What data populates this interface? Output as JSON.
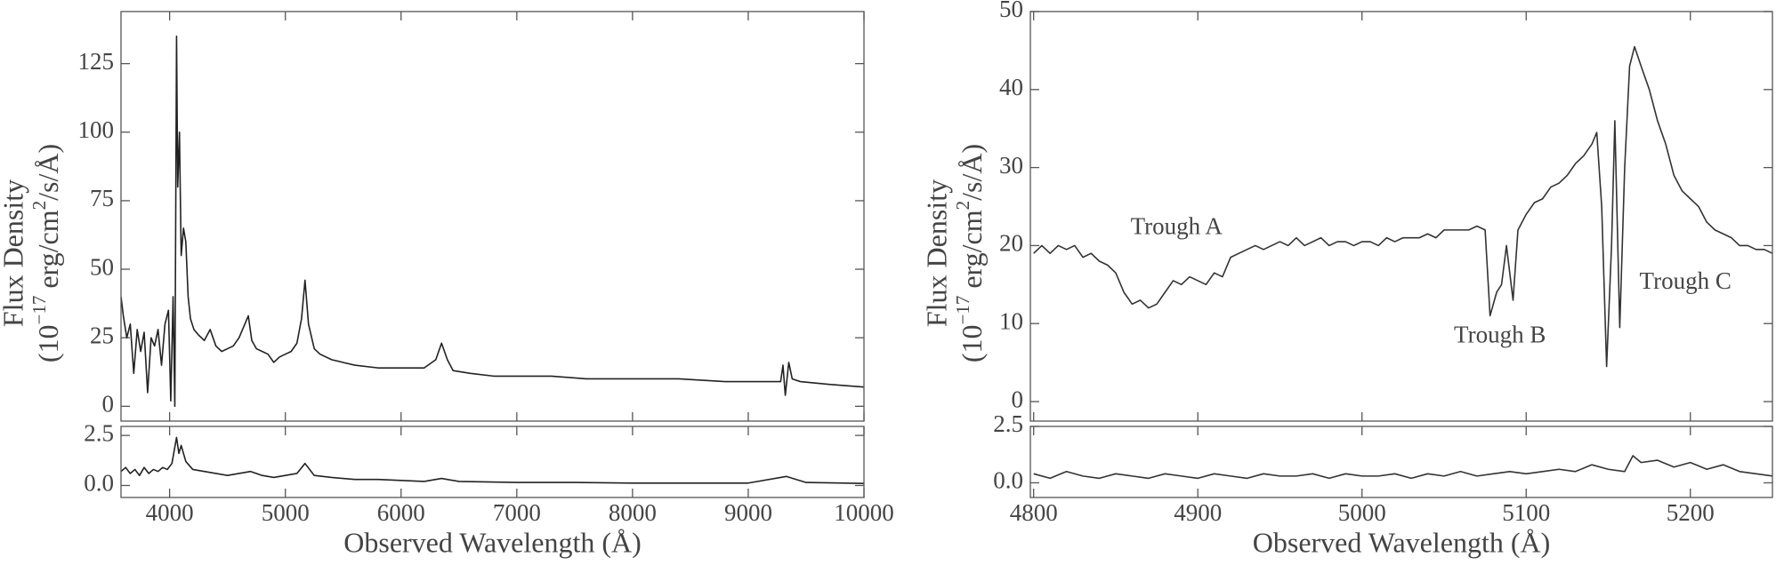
{
  "chart_data": [
    {
      "type": "line",
      "color": "#222222",
      "ylabel": [
        "Flux Density",
        [
          "(10",
          "−17",
          " erg/cm",
          "2",
          "/s/Å)"
        ]
      ],
      "xlim": [
        3580,
        10000
      ],
      "ylim": [
        -5.4,
        144
      ],
      "yticks": [
        0,
        25,
        50,
        75,
        100,
        125
      ],
      "x": [
        3580,
        3600,
        3630,
        3660,
        3690,
        3720,
        3750,
        3780,
        3810,
        3840,
        3870,
        3900,
        3930,
        3960,
        3990,
        4010,
        4030,
        4045,
        4060,
        4070,
        4085,
        4100,
        4120,
        4140,
        4160,
        4180,
        4210,
        4250,
        4300,
        4350,
        4400,
        4450,
        4500,
        4550,
        4600,
        4650,
        4680,
        4710,
        4750,
        4800,
        4850,
        4900,
        4950,
        5000,
        5050,
        5100,
        5140,
        5170,
        5200,
        5250,
        5300,
        5400,
        5500,
        5600,
        5800,
        6000,
        6200,
        6300,
        6350,
        6400,
        6450,
        6600,
        6800,
        7000,
        7300,
        7600,
        8000,
        8400,
        8800,
        9100,
        9280,
        9300,
        9320,
        9350,
        9380,
        9450,
        9700,
        10000
      ],
      "values": [
        40,
        33,
        25,
        30,
        12,
        28,
        20,
        27,
        5,
        25,
        22,
        28,
        15,
        30,
        35,
        2,
        40,
        0,
        135,
        80,
        100,
        55,
        65,
        60,
        40,
        32,
        28,
        26,
        24,
        28,
        22,
        20,
        21,
        22,
        25,
        30,
        33,
        24,
        21,
        20,
        19,
        16,
        18,
        19,
        20,
        23,
        32,
        46,
        30,
        21,
        19,
        17,
        16,
        15,
        14,
        14,
        14,
        17,
        23,
        17,
        13,
        12,
        11,
        11,
        11,
        10,
        10,
        10,
        9,
        9,
        9,
        15,
        4,
        16,
        10,
        9,
        8,
        7
      ]
    },
    {
      "type": "line",
      "color": "#222222",
      "xlabel": "Observed Wavelength (Å)",
      "xlim": [
        3580,
        10000
      ],
      "ylim": [
        -0.6,
        2.95
      ],
      "xticks": [
        4000,
        5000,
        6000,
        7000,
        8000,
        9000,
        10000
      ],
      "yticks": [
        {
          "value": 0,
          "label": "0.0"
        },
        2.5
      ],
      "x": [
        3580,
        3620,
        3660,
        3700,
        3740,
        3780,
        3820,
        3860,
        3900,
        3940,
        3980,
        4020,
        4060,
        4080,
        4100,
        4140,
        4200,
        4300,
        4400,
        4500,
        4600,
        4700,
        4800,
        4900,
        5000,
        5100,
        5170,
        5250,
        5400,
        5600,
        5800,
        6000,
        6200,
        6350,
        6500,
        7000,
        7500,
        8000,
        8500,
        9000,
        9330,
        9500,
        10000
      ],
      "values": [
        0.7,
        0.9,
        0.6,
        0.8,
        0.5,
        0.9,
        0.6,
        0.8,
        0.7,
        0.9,
        0.8,
        1.1,
        2.4,
        1.6,
        2.0,
        1.2,
        0.8,
        0.7,
        0.6,
        0.5,
        0.6,
        0.7,
        0.5,
        0.4,
        0.5,
        0.6,
        1.1,
        0.5,
        0.4,
        0.3,
        0.3,
        0.25,
        0.2,
        0.35,
        0.2,
        0.15,
        0.15,
        0.12,
        0.12,
        0.12,
        0.45,
        0.15,
        0.1
      ]
    },
    {
      "type": "line",
      "color": "#333333",
      "ylabel": [
        "Flux Density",
        [
          "(10",
          "−17",
          " erg/cm",
          "2",
          "/s/Å)"
        ]
      ],
      "xlim": [
        4798,
        5250
      ],
      "ylim": [
        -2.5,
        50
      ],
      "yticks": [
        0,
        10,
        20,
        30,
        40,
        50
      ],
      "annotations": [
        {
          "text": "Trough A",
          "x": 4887,
          "y": 22.2
        },
        {
          "text": "Trough B",
          "x": 5084,
          "y": 8.3
        },
        {
          "text": "Trough C",
          "x": 5197,
          "y": 15.2
        }
      ],
      "x": [
        4800,
        4805,
        4810,
        4815,
        4820,
        4825,
        4830,
        4835,
        4840,
        4845,
        4850,
        4855,
        4860,
        4865,
        4870,
        4875,
        4880,
        4885,
        4890,
        4895,
        4900,
        4905,
        4910,
        4915,
        4920,
        4925,
        4930,
        4935,
        4940,
        4945,
        4950,
        4955,
        4960,
        4965,
        4970,
        4975,
        4980,
        4985,
        4990,
        4995,
        5000,
        5005,
        5010,
        5015,
        5020,
        5025,
        5030,
        5035,
        5040,
        5045,
        5050,
        5055,
        5060,
        5065,
        5070,
        5075,
        5078,
        5082,
        5085,
        5088,
        5092,
        5095,
        5100,
        5105,
        5110,
        5115,
        5120,
        5125,
        5130,
        5135,
        5140,
        5143,
        5146,
        5149,
        5152,
        5154,
        5157,
        5160,
        5163,
        5166,
        5170,
        5175,
        5180,
        5185,
        5190,
        5195,
        5200,
        5205,
        5210,
        5215,
        5220,
        5225,
        5230,
        5235,
        5240,
        5245,
        5250
      ],
      "values": [
        19,
        20,
        19,
        20,
        19.5,
        20,
        18.5,
        19,
        18,
        17.5,
        16.5,
        14,
        12.5,
        13,
        12,
        12.5,
        14,
        15.5,
        15,
        16,
        15.5,
        15,
        16.5,
        16,
        18.5,
        19,
        19.5,
        20,
        19.5,
        20,
        20.5,
        20,
        21,
        20,
        20.5,
        21,
        20,
        20.5,
        20.5,
        20,
        20.5,
        20.5,
        20,
        21,
        20.5,
        21,
        21,
        21,
        21.5,
        21,
        22,
        22,
        22,
        22,
        22.5,
        22,
        11,
        14,
        15,
        20,
        13,
        22,
        24,
        25.5,
        26,
        27.5,
        28,
        29,
        30.5,
        31.5,
        33,
        34.5,
        25,
        4.5,
        20,
        36,
        9.5,
        30,
        43,
        45.5,
        43,
        40,
        36,
        33,
        29,
        27,
        26,
        25,
        23,
        22,
        21.5,
        21,
        20,
        20,
        19.5,
        19.5,
        19
      ]
    },
    {
      "type": "line",
      "color": "#333333",
      "xlabel": "Observed Wavelength (Å)",
      "xlim": [
        4798,
        5250
      ],
      "ylim": [
        -0.65,
        2.5
      ],
      "xticks": [
        4800,
        4900,
        5000,
        5100,
        5200
      ],
      "yticks": [
        {
          "value": 0,
          "label": "0.0"
        },
        2.5
      ],
      "x": [
        4800,
        4810,
        4820,
        4830,
        4840,
        4850,
        4860,
        4870,
        4880,
        4890,
        4900,
        4910,
        4920,
        4930,
        4940,
        4950,
        4960,
        4970,
        4980,
        4990,
        5000,
        5010,
        5020,
        5030,
        5040,
        5050,
        5060,
        5070,
        5080,
        5090,
        5100,
        5110,
        5120,
        5130,
        5140,
        5150,
        5160,
        5165,
        5170,
        5180,
        5190,
        5200,
        5210,
        5220,
        5230,
        5240,
        5250
      ],
      "values": [
        0.4,
        0.2,
        0.5,
        0.3,
        0.2,
        0.4,
        0.3,
        0.2,
        0.4,
        0.3,
        0.2,
        0.4,
        0.3,
        0.2,
        0.4,
        0.3,
        0.3,
        0.4,
        0.2,
        0.4,
        0.3,
        0.3,
        0.4,
        0.2,
        0.4,
        0.3,
        0.5,
        0.3,
        0.4,
        0.5,
        0.4,
        0.5,
        0.6,
        0.5,
        0.8,
        0.6,
        0.5,
        1.2,
        0.9,
        1.0,
        0.7,
        0.9,
        0.6,
        0.8,
        0.5,
        0.4,
        0.3
      ]
    }
  ]
}
